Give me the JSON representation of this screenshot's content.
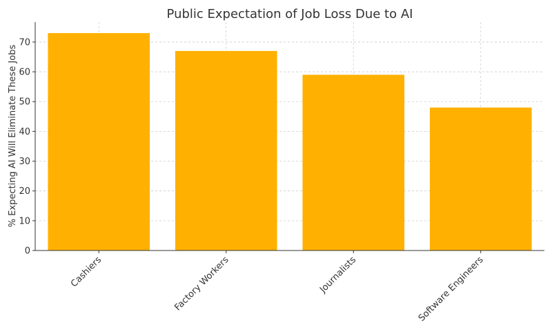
{
  "chart_data": {
    "type": "bar",
    "title": "Public Expectation of Job Loss Due to AI",
    "xlabel": "",
    "ylabel": "% Expecting AI Will Eliminate These Jobs",
    "categories": [
      "Cashiers",
      "Factory Workers",
      "Journalists",
      "Software Engineers"
    ],
    "values": [
      73,
      67,
      59,
      48
    ],
    "ylim": [
      0,
      76.7
    ],
    "yticks": [
      0,
      10,
      20,
      30,
      40,
      50,
      60,
      70
    ],
    "grid": true,
    "bar_color": "#FFB000",
    "axis_color": "#333333",
    "grid_color": "#cccccc"
  }
}
